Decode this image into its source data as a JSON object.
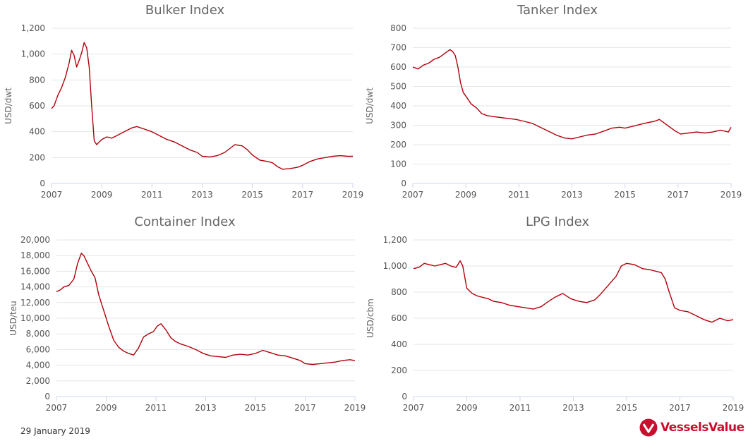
{
  "footer": {
    "date": "29 January 2019",
    "brand": "VesselsValue"
  },
  "colors": {
    "series": "#b2000a",
    "brand": "#c8102e"
  },
  "icons": {
    "brand_logo": "vesselsvalue-logo-icon"
  },
  "chart_data": [
    {
      "type": "line",
      "title": "Bulker Index",
      "ylabel": "USD/dwt",
      "xlabel": "",
      "xlim": [
        2007,
        2019
      ],
      "ylim": [
        0,
        1200
      ],
      "xticks": [
        2007,
        2009,
        2011,
        2013,
        2015,
        2017,
        2019
      ],
      "yticks": [
        "0",
        "200",
        "400",
        "600",
        "800",
        "1,000",
        "1,200"
      ],
      "grid": true,
      "series": [
        {
          "x": [
            2007.0,
            2007.1,
            2007.25,
            2007.4,
            2007.55,
            2007.7,
            2007.8,
            2007.9,
            2008.0,
            2008.1,
            2008.2,
            2008.3,
            2008.4,
            2008.5,
            2008.6,
            2008.7,
            2008.8,
            2008.9,
            2009.0,
            2009.2,
            2009.4,
            2009.6,
            2009.8,
            2010.0,
            2010.2,
            2010.4,
            2010.55,
            2010.7,
            2010.85,
            2011.0,
            2011.3,
            2011.6,
            2011.9,
            2012.2,
            2012.5,
            2012.8,
            2013.0,
            2013.3,
            2013.6,
            2013.9,
            2014.1,
            2014.3,
            2014.6,
            2014.8,
            2015.0,
            2015.3,
            2015.6,
            2015.8,
            2016.0,
            2016.2,
            2016.5,
            2016.8,
            2017.0,
            2017.3,
            2017.6,
            2017.9,
            2018.2,
            2018.5,
            2018.8,
            2019.0
          ],
          "values": [
            580,
            600,
            680,
            740,
            820,
            930,
            1030,
            990,
            900,
            950,
            1010,
            1090,
            1050,
            900,
            600,
            330,
            300,
            320,
            340,
            360,
            350,
            370,
            390,
            410,
            430,
            440,
            430,
            420,
            410,
            400,
            370,
            340,
            320,
            290,
            260,
            240,
            210,
            205,
            215,
            240,
            270,
            300,
            290,
            260,
            220,
            180,
            170,
            160,
            130,
            110,
            115,
            125,
            140,
            170,
            190,
            200,
            210,
            215,
            210,
            210
          ]
        }
      ]
    },
    {
      "type": "line",
      "title": "Tanker Index",
      "ylabel": "USD/dwt",
      "xlabel": "",
      "xlim": [
        2007,
        2019
      ],
      "ylim": [
        0,
        800
      ],
      "xticks": [
        2007,
        2009,
        2011,
        2013,
        2015,
        2017,
        2019
      ],
      "yticks": [
        "0",
        "100",
        "200",
        "300",
        "400",
        "500",
        "600",
        "700",
        "800"
      ],
      "grid": true,
      "series": [
        {
          "x": [
            2007.0,
            2007.2,
            2007.4,
            2007.6,
            2007.8,
            2008.0,
            2008.2,
            2008.4,
            2008.5,
            2008.6,
            2008.7,
            2008.8,
            2008.9,
            2009.0,
            2009.2,
            2009.4,
            2009.6,
            2009.8,
            2010.0,
            2010.3,
            2010.6,
            2010.9,
            2011.2,
            2011.5,
            2011.8,
            2012.1,
            2012.4,
            2012.7,
            2013.0,
            2013.3,
            2013.6,
            2013.9,
            2014.2,
            2014.5,
            2014.8,
            2015.0,
            2015.3,
            2015.6,
            2015.9,
            2016.1,
            2016.3,
            2016.5,
            2016.7,
            2016.9,
            2017.1,
            2017.4,
            2017.7,
            2018.0,
            2018.3,
            2018.6,
            2018.9,
            2019.0
          ],
          "values": [
            600,
            590,
            610,
            620,
            640,
            650,
            670,
            690,
            680,
            660,
            600,
            520,
            470,
            450,
            410,
            390,
            360,
            350,
            345,
            340,
            335,
            330,
            320,
            310,
            290,
            270,
            250,
            235,
            230,
            240,
            250,
            255,
            270,
            285,
            290,
            285,
            295,
            305,
            315,
            320,
            330,
            310,
            290,
            270,
            255,
            260,
            265,
            260,
            265,
            275,
            265,
            290
          ]
        }
      ]
    },
    {
      "type": "line",
      "title": "Container Index",
      "ylabel": "USD/teu",
      "xlabel": "",
      "xlim": [
        2007,
        2019
      ],
      "ylim": [
        0,
        20000
      ],
      "xticks": [
        2007,
        2009,
        2011,
        2013,
        2015,
        2017,
        2019
      ],
      "yticks": [
        "0",
        "2,000",
        "4,000",
        "6,000",
        "8,000",
        "10,000",
        "12,000",
        "14,000",
        "16,000",
        "18,000",
        "20,000"
      ],
      "grid": true,
      "series": [
        {
          "x": [
            2007.0,
            2007.15,
            2007.3,
            2007.5,
            2007.7,
            2007.85,
            2008.0,
            2008.1,
            2008.25,
            2008.4,
            2008.55,
            2008.7,
            2008.8,
            2008.95,
            2009.1,
            2009.3,
            2009.5,
            2009.7,
            2009.9,
            2010.1,
            2010.3,
            2010.5,
            2010.7,
            2010.9,
            2011.05,
            2011.2,
            2011.4,
            2011.6,
            2011.8,
            2012.0,
            2012.3,
            2012.6,
            2012.9,
            2013.2,
            2013.5,
            2013.8,
            2014.1,
            2014.4,
            2014.7,
            2015.0,
            2015.3,
            2015.6,
            2015.9,
            2016.2,
            2016.5,
            2016.8,
            2017.0,
            2017.3,
            2017.6,
            2017.9,
            2018.2,
            2018.5,
            2018.8,
            2019.0
          ],
          "values": [
            13400,
            13600,
            14000,
            14200,
            15000,
            17000,
            18300,
            18000,
            17000,
            16000,
            15200,
            13000,
            12000,
            10500,
            9000,
            7200,
            6300,
            5800,
            5500,
            5300,
            6200,
            7600,
            8000,
            8300,
            9000,
            9300,
            8500,
            7500,
            7000,
            6700,
            6400,
            6000,
            5500,
            5200,
            5100,
            5000,
            5300,
            5400,
            5300,
            5500,
            5900,
            5600,
            5300,
            5200,
            4900,
            4600,
            4200,
            4100,
            4200,
            4300,
            4400,
            4600,
            4700,
            4600
          ]
        }
      ]
    },
    {
      "type": "line",
      "title": "LPG Index",
      "ylabel": "USD/cbm",
      "xlabel": "",
      "xlim": [
        2007,
        2019
      ],
      "ylim": [
        0,
        1200
      ],
      "xticks": [
        2007,
        2009,
        2011,
        2013,
        2015,
        2017,
        2019
      ],
      "yticks": [
        "0",
        "200",
        "400",
        "600",
        "800",
        "1,000",
        "1,200"
      ],
      "grid": true,
      "series": [
        {
          "x": [
            2007.0,
            2007.2,
            2007.4,
            2007.6,
            2007.8,
            2008.0,
            2008.2,
            2008.4,
            2008.6,
            2008.75,
            2008.85,
            2009.0,
            2009.2,
            2009.4,
            2009.6,
            2009.8,
            2010.0,
            2010.3,
            2010.6,
            2010.9,
            2011.2,
            2011.5,
            2011.8,
            2012.0,
            2012.3,
            2012.6,
            2012.9,
            2013.2,
            2013.5,
            2013.8,
            2014.0,
            2014.3,
            2014.6,
            2014.8,
            2015.0,
            2015.3,
            2015.6,
            2015.9,
            2016.1,
            2016.3,
            2016.45,
            2016.6,
            2016.8,
            2017.0,
            2017.3,
            2017.6,
            2017.9,
            2018.2,
            2018.5,
            2018.8,
            2019.0
          ],
          "values": [
            980,
            990,
            1020,
            1010,
            1000,
            1010,
            1020,
            1000,
            990,
            1040,
            1000,
            830,
            790,
            770,
            760,
            750,
            730,
            720,
            700,
            690,
            680,
            670,
            690,
            720,
            760,
            790,
            750,
            730,
            720,
            740,
            780,
            850,
            920,
            1000,
            1020,
            1010,
            980,
            970,
            960,
            950,
            900,
            800,
            680,
            660,
            650,
            620,
            590,
            570,
            600,
            580,
            590
          ]
        }
      ]
    }
  ]
}
